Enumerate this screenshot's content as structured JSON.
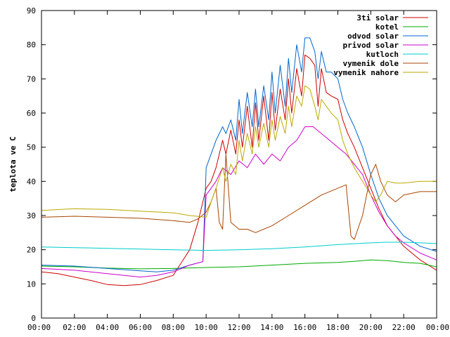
{
  "chart_data": {
    "type": "line",
    "title": "",
    "xlabel": "",
    "ylabel": "teplota ve C",
    "xlim": [
      0,
      24
    ],
    "ylim": [
      0,
      90
    ],
    "x_ticks": [
      "00:00",
      "02:00",
      "04:00",
      "06:00",
      "08:00",
      "10:00",
      "12:00",
      "14:00",
      "16:00",
      "18:00",
      "20:00",
      "22:00",
      "00:00"
    ],
    "y_ticks": [
      0,
      10,
      20,
      30,
      40,
      50,
      60,
      70,
      80,
      90
    ],
    "grid": false,
    "legend_position": "top-right",
    "series": [
      {
        "name": "3ti solar",
        "color": "#cc0000",
        "points": [
          [
            0,
            13.5
          ],
          [
            1,
            13
          ],
          [
            2,
            12
          ],
          [
            3,
            11
          ],
          [
            4,
            9.8
          ],
          [
            5,
            9.5
          ],
          [
            6,
            9.8
          ],
          [
            7,
            11
          ],
          [
            8,
            12.5
          ],
          [
            9,
            20
          ],
          [
            9.5,
            28
          ],
          [
            9.8,
            34
          ],
          [
            10,
            38
          ],
          [
            10.3,
            40
          ],
          [
            10.6,
            44
          ],
          [
            11,
            52
          ],
          [
            11.2,
            48
          ],
          [
            11.5,
            55
          ],
          [
            11.8,
            48
          ],
          [
            12,
            58
          ],
          [
            12.2,
            50
          ],
          [
            12.5,
            62
          ],
          [
            12.8,
            50
          ],
          [
            13,
            63
          ],
          [
            13.2,
            52
          ],
          [
            13.5,
            65
          ],
          [
            13.8,
            52
          ],
          [
            14,
            66
          ],
          [
            14.2,
            55
          ],
          [
            14.5,
            67
          ],
          [
            14.8,
            58
          ],
          [
            15,
            70
          ],
          [
            15.2,
            60
          ],
          [
            15.5,
            73
          ],
          [
            15.8,
            65
          ],
          [
            16,
            77
          ],
          [
            16.3,
            76
          ],
          [
            16.6,
            74
          ],
          [
            16.8,
            62
          ],
          [
            17,
            73
          ],
          [
            17.3,
            66
          ],
          [
            17.6,
            65
          ],
          [
            18,
            64
          ],
          [
            18.3,
            58
          ],
          [
            18.6,
            54
          ],
          [
            19,
            50
          ],
          [
            19.5,
            44
          ],
          [
            20,
            38
          ],
          [
            20.5,
            32
          ],
          [
            21,
            27
          ],
          [
            21.5,
            24
          ],
          [
            22,
            21
          ],
          [
            23,
            17
          ],
          [
            24,
            14
          ]
        ]
      },
      {
        "name": "kotel",
        "color": "#00aa00",
        "points": [
          [
            0,
            15.2
          ],
          [
            2,
            15
          ],
          [
            4,
            14.6
          ],
          [
            6,
            14.4
          ],
          [
            8,
            14.5
          ],
          [
            10,
            14.8
          ],
          [
            12,
            15
          ],
          [
            14,
            15.5
          ],
          [
            16,
            16
          ],
          [
            18,
            16.3
          ],
          [
            19,
            16.6
          ],
          [
            20,
            17
          ],
          [
            21,
            16.8
          ],
          [
            22,
            16.3
          ],
          [
            23,
            16
          ],
          [
            24,
            15
          ]
        ]
      },
      {
        "name": "odvod solar",
        "color": "#0066cc",
        "points": [
          [
            0,
            15.5
          ],
          [
            2,
            15.2
          ],
          [
            4,
            14.5
          ],
          [
            6,
            13.8
          ],
          [
            7,
            13.5
          ],
          [
            8,
            14
          ],
          [
            9,
            15.5
          ],
          [
            9.8,
            16.5
          ],
          [
            10,
            44
          ],
          [
            10.3,
            48
          ],
          [
            10.6,
            52
          ],
          [
            11,
            56
          ],
          [
            11.2,
            54
          ],
          [
            11.5,
            58
          ],
          [
            11.8,
            52
          ],
          [
            12,
            64
          ],
          [
            12.2,
            54
          ],
          [
            12.5,
            66
          ],
          [
            12.8,
            56
          ],
          [
            13,
            67
          ],
          [
            13.2,
            56
          ],
          [
            13.5,
            68
          ],
          [
            13.8,
            58
          ],
          [
            14,
            72
          ],
          [
            14.2,
            60
          ],
          [
            14.5,
            74
          ],
          [
            14.8,
            62
          ],
          [
            15,
            76
          ],
          [
            15.2,
            66
          ],
          [
            15.5,
            80
          ],
          [
            15.8,
            72
          ],
          [
            16,
            82
          ],
          [
            16.3,
            82
          ],
          [
            16.6,
            78
          ],
          [
            16.8,
            70
          ],
          [
            17,
            78
          ],
          [
            17.3,
            72
          ],
          [
            17.6,
            72
          ],
          [
            18,
            70
          ],
          [
            18.3,
            64
          ],
          [
            18.6,
            60
          ],
          [
            19,
            56
          ],
          [
            19.5,
            50
          ],
          [
            20,
            42
          ],
          [
            20.5,
            35
          ],
          [
            21,
            30
          ],
          [
            21.5,
            27
          ],
          [
            22,
            24
          ],
          [
            23,
            21
          ],
          [
            24,
            19.5
          ]
        ]
      },
      {
        "name": "privod solar",
        "color": "#cc00cc",
        "points": [
          [
            0,
            14.5
          ],
          [
            2,
            14
          ],
          [
            4,
            13
          ],
          [
            6,
            12
          ],
          [
            7,
            12.5
          ],
          [
            8,
            13.5
          ],
          [
            9,
            15.5
          ],
          [
            9.8,
            16.5
          ],
          [
            10,
            36
          ],
          [
            10.3,
            38
          ],
          [
            10.6,
            40
          ],
          [
            11,
            44
          ],
          [
            11.5,
            42
          ],
          [
            12,
            46
          ],
          [
            12.5,
            44
          ],
          [
            13,
            48
          ],
          [
            13.5,
            45
          ],
          [
            14,
            48
          ],
          [
            14.5,
            46
          ],
          [
            15,
            50
          ],
          [
            15.5,
            52
          ],
          [
            16,
            56
          ],
          [
            16.5,
            56
          ],
          [
            17,
            54
          ],
          [
            17.5,
            52
          ],
          [
            18,
            50
          ],
          [
            18.5,
            48
          ],
          [
            19,
            45
          ],
          [
            19.5,
            42
          ],
          [
            20,
            36
          ],
          [
            20.5,
            31
          ],
          [
            21,
            27
          ],
          [
            21.5,
            24
          ],
          [
            22,
            22
          ],
          [
            23,
            19
          ],
          [
            24,
            17
          ]
        ]
      },
      {
        "name": "kutloch",
        "color": "#00cccc",
        "points": [
          [
            0,
            20.8
          ],
          [
            2,
            20.6
          ],
          [
            4,
            20.4
          ],
          [
            6,
            20.2
          ],
          [
            8,
            20
          ],
          [
            10,
            19.8
          ],
          [
            12,
            20
          ],
          [
            14,
            20.3
          ],
          [
            16,
            20.8
          ],
          [
            18,
            21.5
          ],
          [
            20,
            22
          ],
          [
            21,
            22.2
          ],
          [
            22,
            22.2
          ],
          [
            23,
            22
          ],
          [
            24,
            21.8
          ]
        ]
      },
      {
        "name": "vymenik dole",
        "color": "#aa4400",
        "points": [
          [
            0,
            29.5
          ],
          [
            2,
            29.8
          ],
          [
            4,
            29.5
          ],
          [
            6,
            29.2
          ],
          [
            8,
            28.5
          ],
          [
            9,
            28
          ],
          [
            9.5,
            29
          ],
          [
            10,
            31
          ],
          [
            10.3,
            34
          ],
          [
            10.6,
            38
          ],
          [
            10.8,
            28
          ],
          [
            11,
            26
          ],
          [
            11.2,
            48
          ],
          [
            11.5,
            28
          ],
          [
            12,
            26
          ],
          [
            12.5,
            26
          ],
          [
            13,
            25
          ],
          [
            14,
            27
          ],
          [
            15,
            30
          ],
          [
            16,
            33
          ],
          [
            17,
            36
          ],
          [
            18,
            38
          ],
          [
            18.5,
            39
          ],
          [
            18.8,
            24
          ],
          [
            19,
            23
          ],
          [
            19.5,
            30
          ],
          [
            20,
            42
          ],
          [
            20.3,
            45
          ],
          [
            20.6,
            40
          ],
          [
            21,
            36
          ],
          [
            21.5,
            34
          ],
          [
            22,
            36
          ],
          [
            23,
            37
          ],
          [
            24,
            37
          ]
        ]
      },
      {
        "name": "vymenik nahore",
        "color": "#bbaa00",
        "points": [
          [
            0,
            31.5
          ],
          [
            2,
            32
          ],
          [
            4,
            31.8
          ],
          [
            6,
            31.3
          ],
          [
            8,
            30.8
          ],
          [
            9,
            30
          ],
          [
            10,
            29.5
          ],
          [
            10.3,
            34
          ],
          [
            10.6,
            38
          ],
          [
            11,
            44
          ],
          [
            11.2,
            40
          ],
          [
            11.5,
            45
          ],
          [
            11.8,
            42
          ],
          [
            12,
            52
          ],
          [
            12.2,
            46
          ],
          [
            12.5,
            54
          ],
          [
            12.8,
            48
          ],
          [
            13,
            56
          ],
          [
            13.2,
            50
          ],
          [
            13.5,
            57
          ],
          [
            13.8,
            50
          ],
          [
            14,
            58
          ],
          [
            14.2,
            52
          ],
          [
            14.5,
            59
          ],
          [
            14.8,
            54
          ],
          [
            15,
            62
          ],
          [
            15.2,
            56
          ],
          [
            15.5,
            65
          ],
          [
            15.8,
            62
          ],
          [
            16,
            68
          ],
          [
            16.3,
            67
          ],
          [
            16.6,
            62
          ],
          [
            16.8,
            58
          ],
          [
            17,
            64
          ],
          [
            17.3,
            62
          ],
          [
            17.6,
            60
          ],
          [
            18,
            58
          ],
          [
            18.3,
            52
          ],
          [
            18.6,
            48
          ],
          [
            19,
            44
          ],
          [
            19.5,
            40
          ],
          [
            20,
            36
          ],
          [
            20.3,
            34
          ],
          [
            20.6,
            36
          ],
          [
            21,
            40
          ],
          [
            21.5,
            39.5
          ],
          [
            22,
            39.5
          ],
          [
            23,
            40
          ],
          [
            24,
            40
          ]
        ]
      }
    ]
  }
}
